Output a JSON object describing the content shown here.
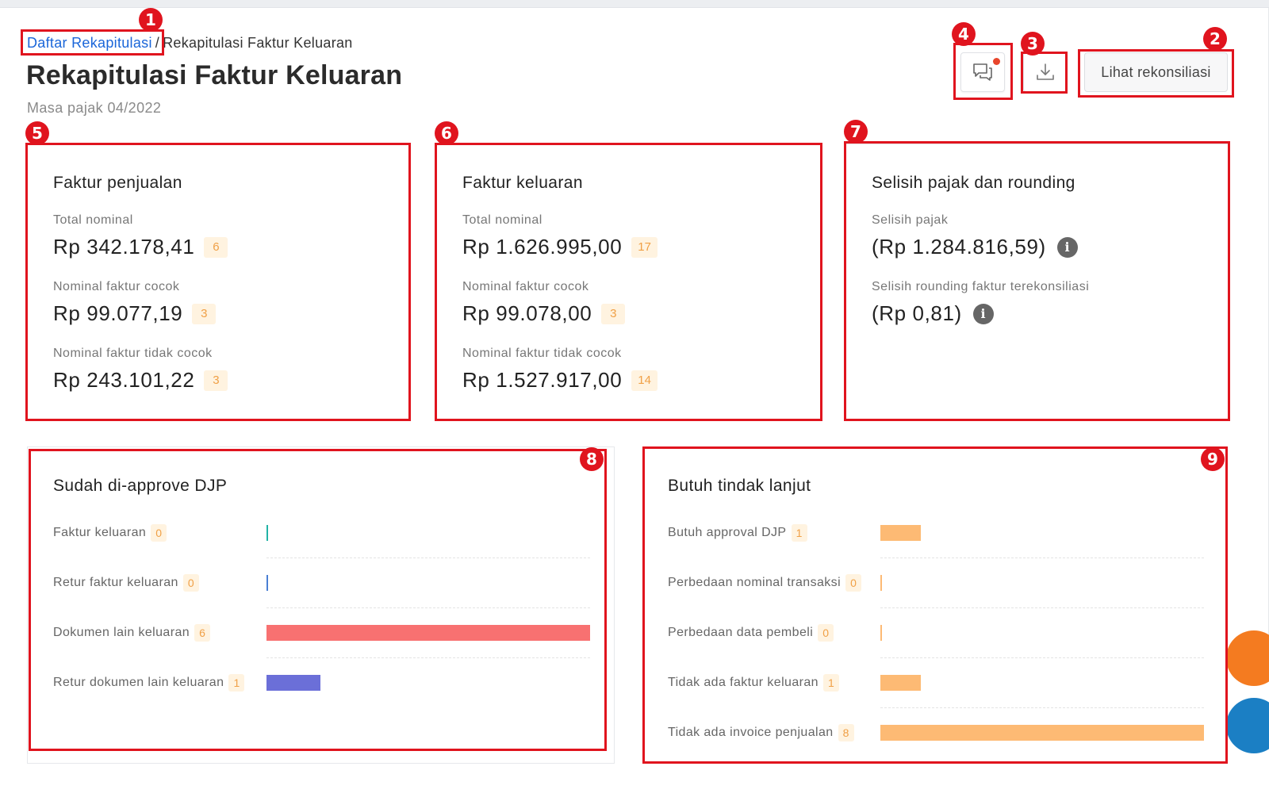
{
  "breadcrumb": {
    "link": "Daftar Rekapitulasi",
    "separator": "/",
    "current": "Rekapitulasi Faktur Keluaran"
  },
  "header": {
    "title": "Rekapitulasi Faktur Keluaran",
    "subtitle": "Masa pajak 04/2022",
    "comment_icon": "chat-bubbles-icon",
    "download_icon": "download-icon",
    "recon_button": "Lihat rekonsiliasi"
  },
  "cards": {
    "penjualan": {
      "title": "Faktur penjualan",
      "metrics": [
        {
          "label": "Total nominal",
          "value": "Rp 342.178,41",
          "count": "6"
        },
        {
          "label": "Nominal faktur cocok",
          "value": "Rp 99.077,19",
          "count": "3"
        },
        {
          "label": "Nominal faktur tidak cocok",
          "value": "Rp 243.101,22",
          "count": "3"
        }
      ]
    },
    "keluaran": {
      "title": "Faktur keluaran",
      "metrics": [
        {
          "label": "Total nominal",
          "value": "Rp 1.626.995,00",
          "count": "17"
        },
        {
          "label": "Nominal faktur cocok",
          "value": "Rp 99.078,00",
          "count": "3"
        },
        {
          "label": "Nominal faktur tidak cocok",
          "value": "Rp 1.527.917,00",
          "count": "14"
        }
      ]
    },
    "selisih": {
      "title": "Selisih pajak dan rounding",
      "metrics": [
        {
          "label": "Selisih pajak",
          "value": "(Rp 1.284.816,59)",
          "info_icon": "i"
        },
        {
          "label": "Selisih rounding faktur terekonsiliasi",
          "value": "(Rp 0,81)",
          "info_icon": "i"
        }
      ]
    }
  },
  "approved": {
    "title": "Sudah di-approve DJP",
    "max": 6,
    "rows": [
      {
        "label": "Faktur keluaran",
        "count": "0",
        "value": 0,
        "color": "#22b3a6"
      },
      {
        "label": "Retur faktur keluaran",
        "count": "0",
        "value": 0,
        "color": "#4a7fd4"
      },
      {
        "label": "Dokumen lain keluaran",
        "count": "6",
        "value": 6,
        "color": "#f87171"
      },
      {
        "label": "Retur dokumen lain keluaran",
        "count": "1",
        "value": 1,
        "color": "#6b6fd8"
      }
    ]
  },
  "followup": {
    "title": "Butuh tindak lanjut",
    "max": 8,
    "rows": [
      {
        "label": "Butuh approval DJP",
        "count": "1",
        "value": 1,
        "color": "#fdba74"
      },
      {
        "label": "Perbedaan nominal transaksi",
        "count": "0",
        "value": 0,
        "color": "#fdba74"
      },
      {
        "label": "Perbedaan data pembeli",
        "count": "0",
        "value": 0,
        "color": "#fdba74"
      },
      {
        "label": "Tidak ada faktur keluaran",
        "count": "1",
        "value": 1,
        "color": "#fdba74"
      },
      {
        "label": "Tidak ada invoice penjualan",
        "count": "8",
        "value": 8,
        "color": "#fdba74"
      }
    ]
  },
  "annotations": [
    "1",
    "2",
    "3",
    "4",
    "5",
    "6",
    "7",
    "8",
    "9"
  ],
  "colors": {
    "link": "#1a66d9",
    "annotation": "#e0141e",
    "badge_bg": "#fff3e0",
    "badge_text": "#f0a046",
    "notification_dot": "#e8462c"
  }
}
